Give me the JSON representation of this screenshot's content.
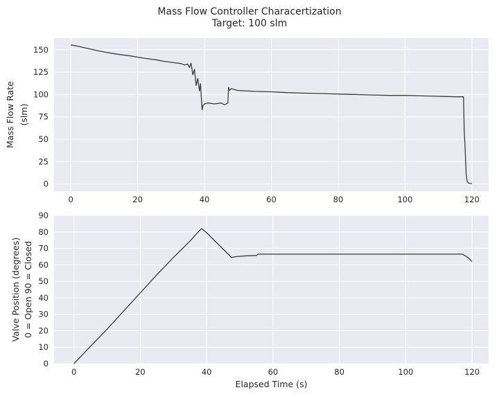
{
  "figure": {
    "title": "Mass Flow Controller Characertization",
    "subtitle": "Target: 100 slm"
  },
  "chart_data": [
    {
      "type": "line",
      "xlabel": "",
      "ylabel": [
        "Mass Flow Rate",
        "(slm)"
      ],
      "xlim": [
        -5,
        125
      ],
      "ylim": [
        -8,
        163
      ],
      "xticks": [
        0,
        20,
        40,
        60,
        80,
        100,
        120
      ],
      "yticks": [
        0,
        25,
        50,
        75,
        100,
        125,
        150
      ],
      "grid": true,
      "line_color": "#3a3a3a",
      "background": "#eaeaf2",
      "series": [
        {
          "x": [
            0,
            2,
            5,
            8,
            10,
            14,
            18,
            22,
            26,
            28,
            30,
            32,
            33,
            34,
            35,
            35.5,
            36,
            36.5,
            37,
            37.5,
            38,
            38.5,
            38.8,
            39,
            39.3,
            39.6,
            40,
            41,
            43,
            45,
            46,
            47,
            47.2,
            47.5,
            48,
            50,
            55,
            60,
            65,
            70,
            75,
            80,
            85,
            90,
            95,
            100,
            105,
            110,
            115,
            117,
            117.5,
            117.7,
            117.9,
            118.1,
            118.3,
            118.6,
            119,
            119.5,
            120
          ],
          "y": [
            155.5,
            154,
            151.5,
            149,
            147.5,
            145,
            143,
            140.5,
            138.5,
            137,
            136,
            135,
            134.5,
            133,
            134,
            130,
            135,
            122,
            128,
            110,
            118,
            104,
            112,
            100,
            83,
            88,
            89.5,
            90.5,
            89.5,
            90.5,
            88.5,
            90.5,
            108,
            104.5,
            106.5,
            104.5,
            103.5,
            103,
            102,
            101.5,
            101,
            100.5,
            100,
            99.5,
            99,
            99,
            98.5,
            98,
            97.5,
            97.5,
            97.5,
            60,
            45,
            28,
            10,
            3,
            1,
            0.8,
            0.6
          ]
        }
      ]
    },
    {
      "type": "line",
      "xlabel": "Elapsed Time (s)",
      "ylabel": [
        "Valve Position (degrees)",
        "0 = Open    90 = Closed"
      ],
      "xlim": [
        -6,
        125
      ],
      "ylim": [
        0,
        90
      ],
      "xticks": [
        0,
        20,
        40,
        60,
        80,
        100,
        120
      ],
      "yticks": [
        0,
        10,
        20,
        30,
        40,
        50,
        60,
        70,
        80,
        90
      ],
      "grid": true,
      "line_color": "#3a3a3a",
      "background": "#eaeaf2",
      "series": [
        {
          "x": [
            0,
            5,
            10,
            15,
            20,
            25,
            30,
            35,
            37,
            38,
            38.5,
            40,
            42,
            44,
            46,
            47.5,
            49,
            52,
            55,
            55.5,
            60,
            70,
            80,
            90,
            100,
            110,
            117,
            118,
            119,
            120
          ],
          "y": [
            0,
            10.5,
            21,
            32,
            43,
            54,
            64.5,
            74.5,
            79,
            81,
            82,
            79.5,
            75.5,
            71.5,
            67.5,
            64.5,
            65,
            65.5,
            65.7,
            66.5,
            66.5,
            66.5,
            66.5,
            66.5,
            66.5,
            66.5,
            66.5,
            65.5,
            64,
            62
          ]
        }
      ]
    }
  ]
}
